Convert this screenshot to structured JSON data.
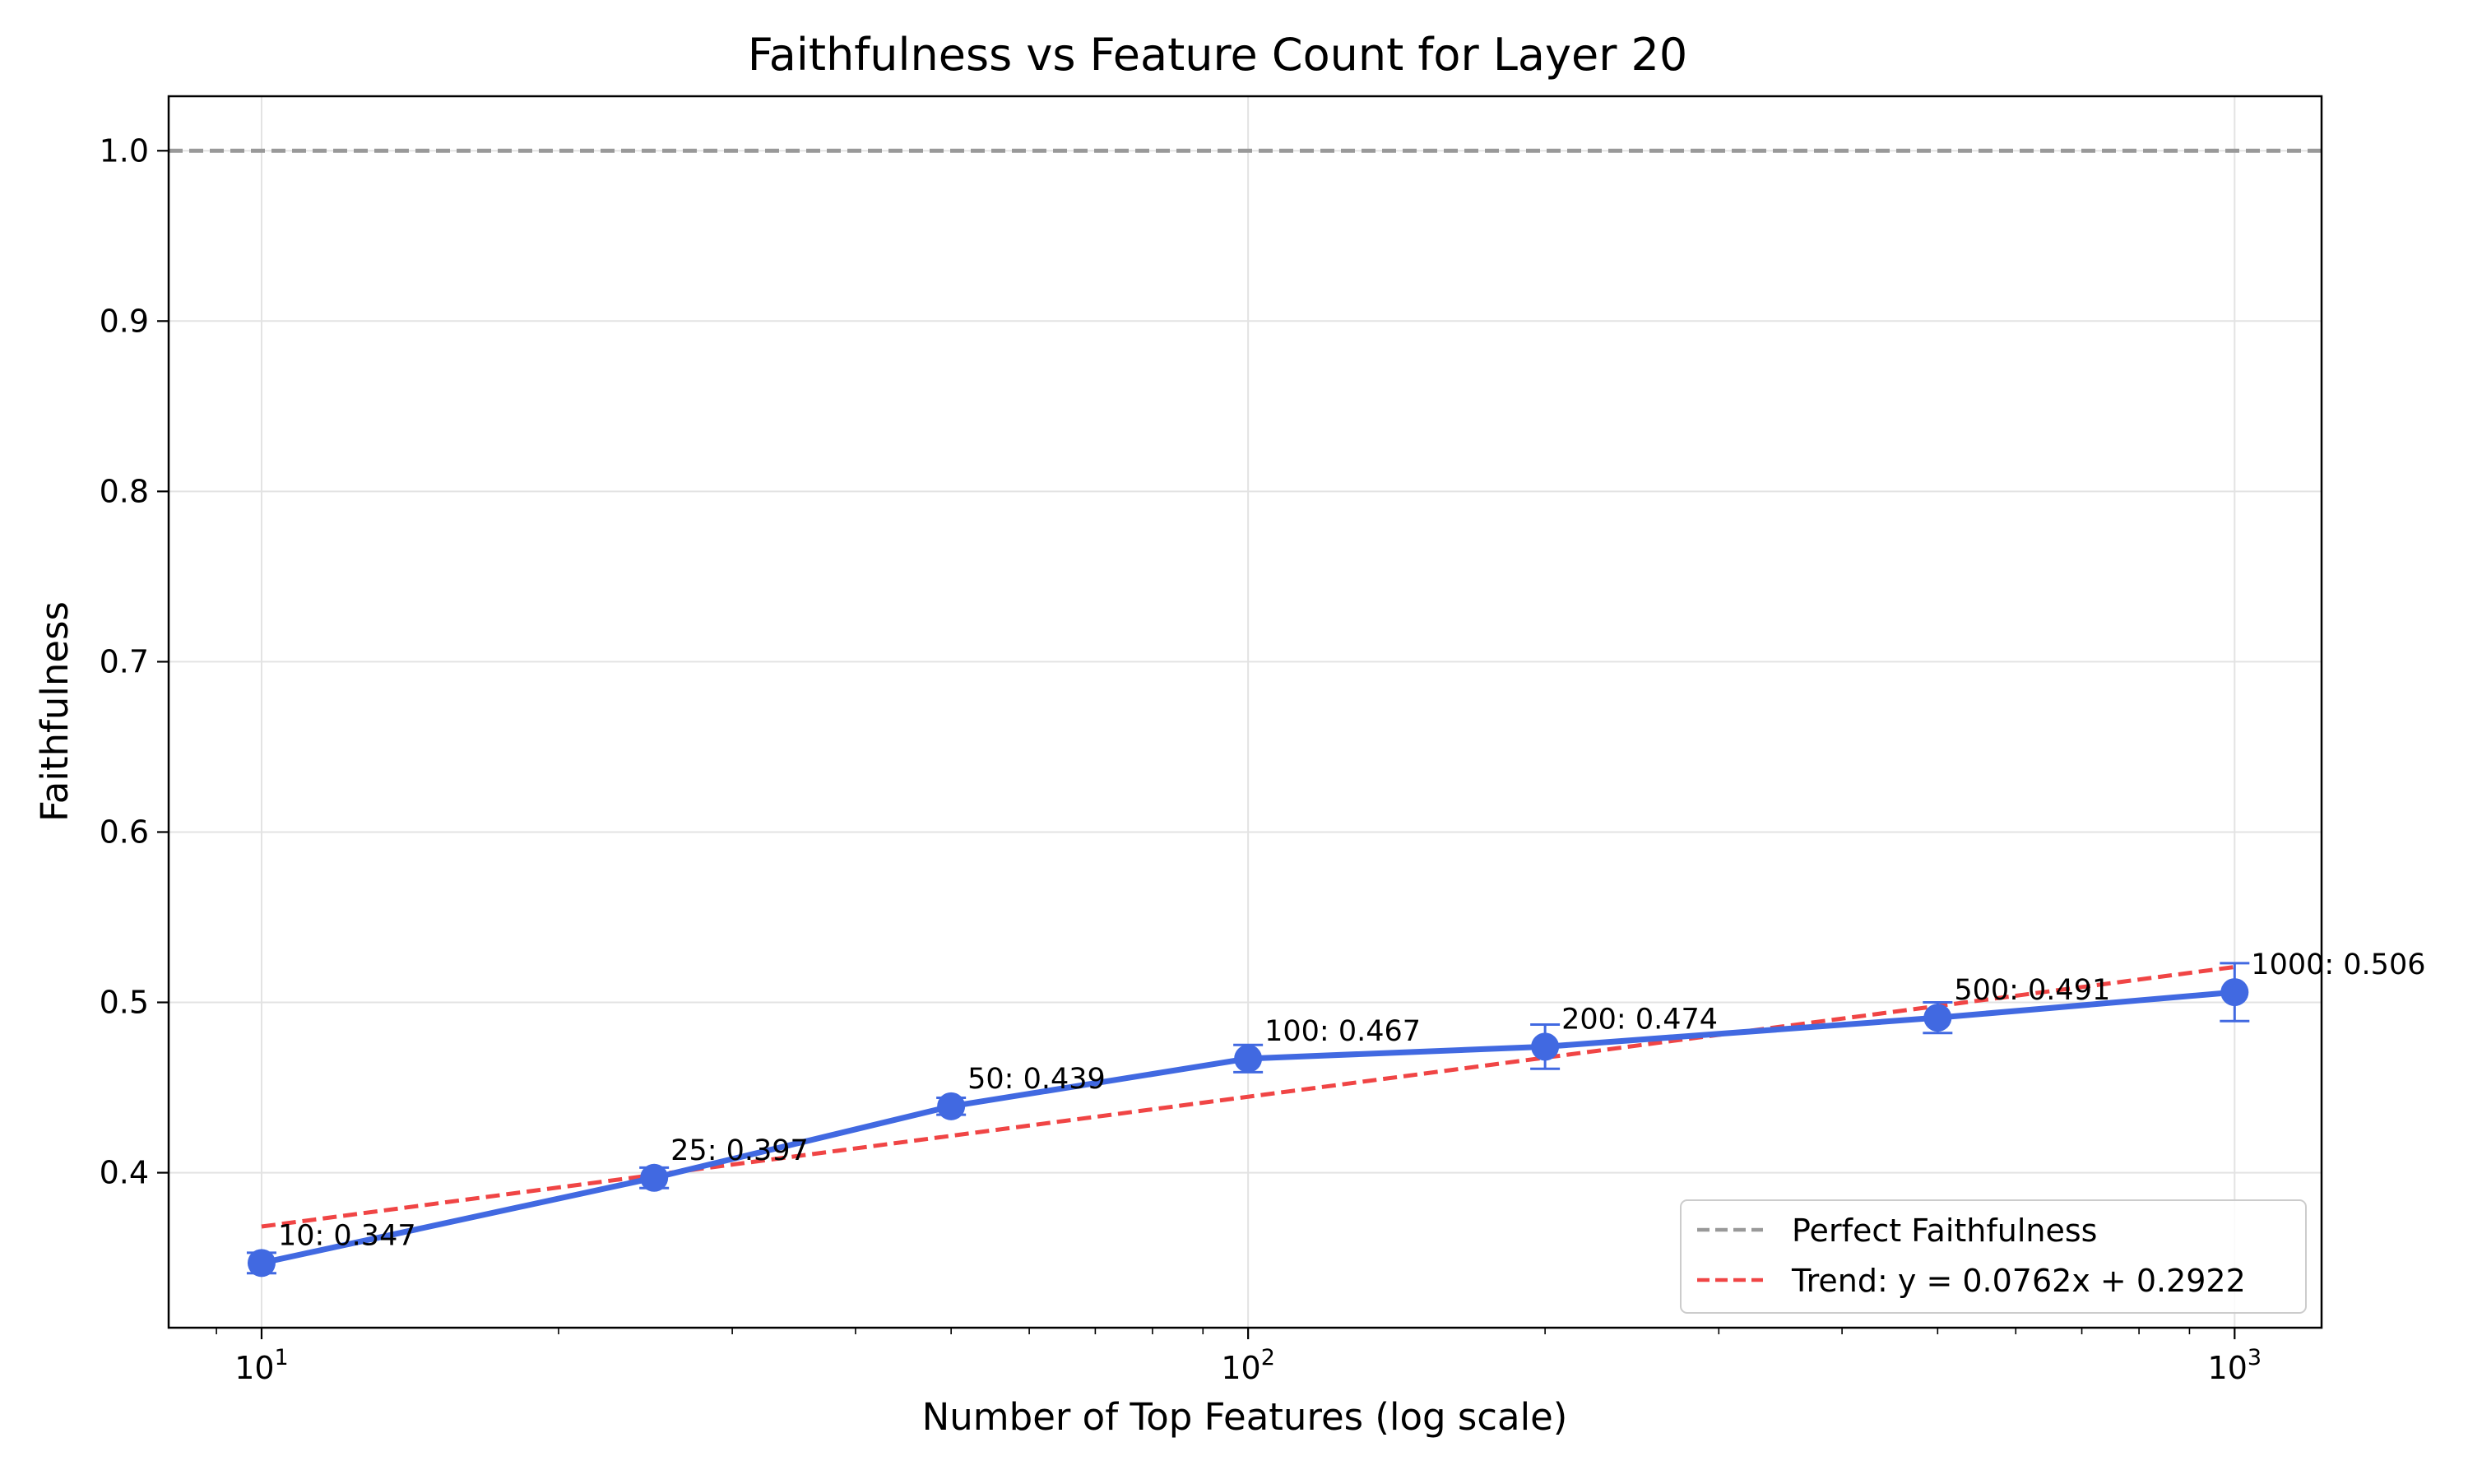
{
  "chart_data": {
    "type": "line",
    "title": "Faithfulness vs Feature Count for Layer 20",
    "xlabel": "Number of Top Features (log scale)",
    "ylabel": "Faithfulness",
    "x_scale": "log",
    "xlim": [
      8.05,
      1225
    ],
    "ylim": [
      0.309,
      1.032
    ],
    "grid": true,
    "x_ticks": [
      {
        "value": 10,
        "base": "10",
        "exp": "1"
      },
      {
        "value": 100,
        "base": "10",
        "exp": "2"
      },
      {
        "value": 1000,
        "base": "10",
        "exp": "3"
      }
    ],
    "y_ticks": [
      {
        "value": 0.4,
        "label": "0.4"
      },
      {
        "value": 0.5,
        "label": "0.5"
      },
      {
        "value": 0.6,
        "label": "0.6"
      },
      {
        "value": 0.7,
        "label": "0.7"
      },
      {
        "value": 0.8,
        "label": "0.8"
      },
      {
        "value": 0.9,
        "label": "0.9"
      },
      {
        "value": 1.0,
        "label": "1.0"
      }
    ],
    "series": [
      {
        "x": [
          10,
          25,
          50,
          100,
          200,
          500,
          1000
        ],
        "y": [
          0.347,
          0.397,
          0.439,
          0.467,
          0.474,
          0.491,
          0.506
        ],
        "err": [
          0.006,
          0.006,
          0.005,
          0.008,
          0.013,
          0.009,
          0.017
        ],
        "color": "#4169E1"
      }
    ],
    "annotations": [
      "10: 0.347",
      "25: 0.397",
      "50: 0.439",
      "100: 0.467",
      "200: 0.474",
      "500: 0.491",
      "1000: 0.506"
    ],
    "reference_line": {
      "name": "Perfect Faithfulness",
      "y": 1.0,
      "color": "#999999"
    },
    "trend_line": {
      "name": "Trend: y = 0.0762x + 0.2922",
      "slope": 0.0762,
      "intercept": 0.2922,
      "color": "#F04545"
    },
    "legend_position": "lower right"
  }
}
